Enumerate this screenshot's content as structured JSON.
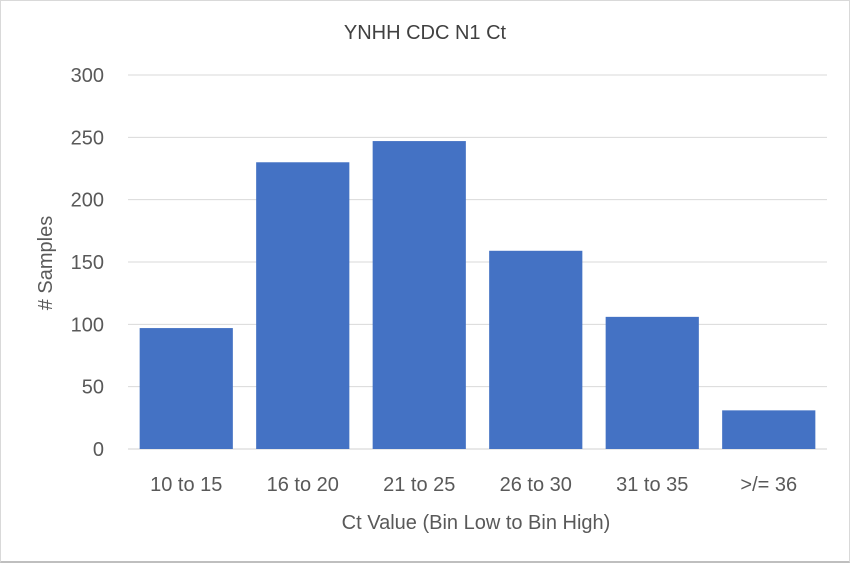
{
  "chart_data": {
    "type": "bar",
    "title": "YNHH CDC N1 Ct",
    "xlabel": "Ct Value (Bin Low to Bin High)",
    "ylabel": "# Samples",
    "categories": [
      "10 to 15",
      "16 to 20",
      "21 to 25",
      "26 to 30",
      "31 to 35",
      ">/= 36"
    ],
    "values": [
      97,
      230,
      247,
      159,
      106,
      31
    ],
    "ylim": [
      0,
      300
    ],
    "yticks": [
      0,
      50,
      100,
      150,
      200,
      250,
      300
    ],
    "grid": true,
    "legend": "none",
    "bar_color": "#4472c4",
    "grid_color": "#d9d9d9"
  }
}
